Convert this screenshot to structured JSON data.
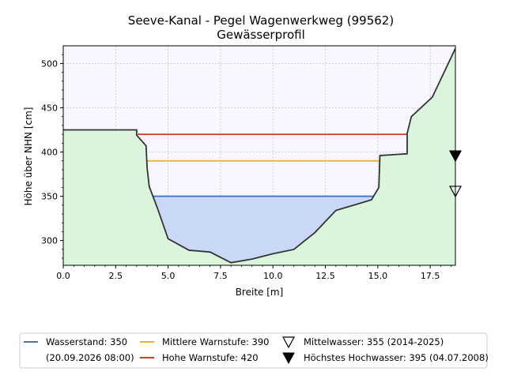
{
  "chart_data": {
    "type": "area",
    "title": "Seeve-Kanal - Pegel Wagenwerkweg (99562)",
    "subtitle": "Gewässerprofil",
    "xlabel": "Breite [m]",
    "ylabel": "Höhe über NHN [cm]",
    "xlim": [
      0,
      18.7
    ],
    "ylim": [
      272,
      520
    ],
    "x_ticks": [
      0.0,
      2.5,
      5.0,
      7.5,
      10.0,
      12.5,
      15.0,
      17.5
    ],
    "x_tick_labels": [
      "0.0",
      "2.5",
      "5.0",
      "7.5",
      "10.0",
      "12.5",
      "15.0",
      "17.5"
    ],
    "y_ticks": [
      300,
      350,
      400,
      450,
      500
    ],
    "y_tick_labels": [
      "300",
      "350",
      "400",
      "450",
      "500"
    ],
    "grid": true,
    "profile": {
      "x": [
        0.0,
        3.5,
        3.5,
        3.95,
        4.0,
        4.1,
        4.5,
        5.0,
        6.0,
        7.0,
        8.0,
        9.0,
        10.0,
        11.0,
        12.0,
        13.0,
        14.0,
        14.7,
        15.05,
        15.1,
        16.4,
        16.4,
        16.6,
        17.6,
        18.3,
        18.7
      ],
      "y": [
        425,
        425,
        419,
        407,
        382,
        361,
        336,
        302,
        289,
        287,
        275,
        279,
        285,
        290,
        309,
        334,
        341,
        346,
        360,
        396,
        398,
        421,
        440,
        462,
        497,
        517
      ]
    },
    "lines": [
      {
        "name": "Wasserstand: 350",
        "name_line2": "(20.09.2026 08:00)",
        "value": 350,
        "x_start": 4.3,
        "x_end": 14.8,
        "color": "#4472c4",
        "fill": "#c9d8f7"
      },
      {
        "name": "Mittlere Warnstufe: 390",
        "value": 390,
        "x_start": 4.0,
        "x_end": 15.1,
        "color": "#f0b020"
      },
      {
        "name": "Hohe Warnstufe: 420",
        "value": 420,
        "x_start": 3.55,
        "x_end": 16.4,
        "color": "#d23a2a"
      }
    ],
    "markers": [
      {
        "name": "Mittelwasser: 355 (2014-2025)",
        "value": 355,
        "style": "open-triangle-down"
      },
      {
        "name": "Höchstes Hochwasser: 395 (04.07.2008)",
        "value": 395,
        "style": "filled-triangle-down"
      }
    ],
    "colors": {
      "ground": "#dbf5dc",
      "sky": "#f7f7ff",
      "profile_line": "#333333",
      "grid": "#c8c8c8"
    },
    "legend_position": "bottom"
  }
}
